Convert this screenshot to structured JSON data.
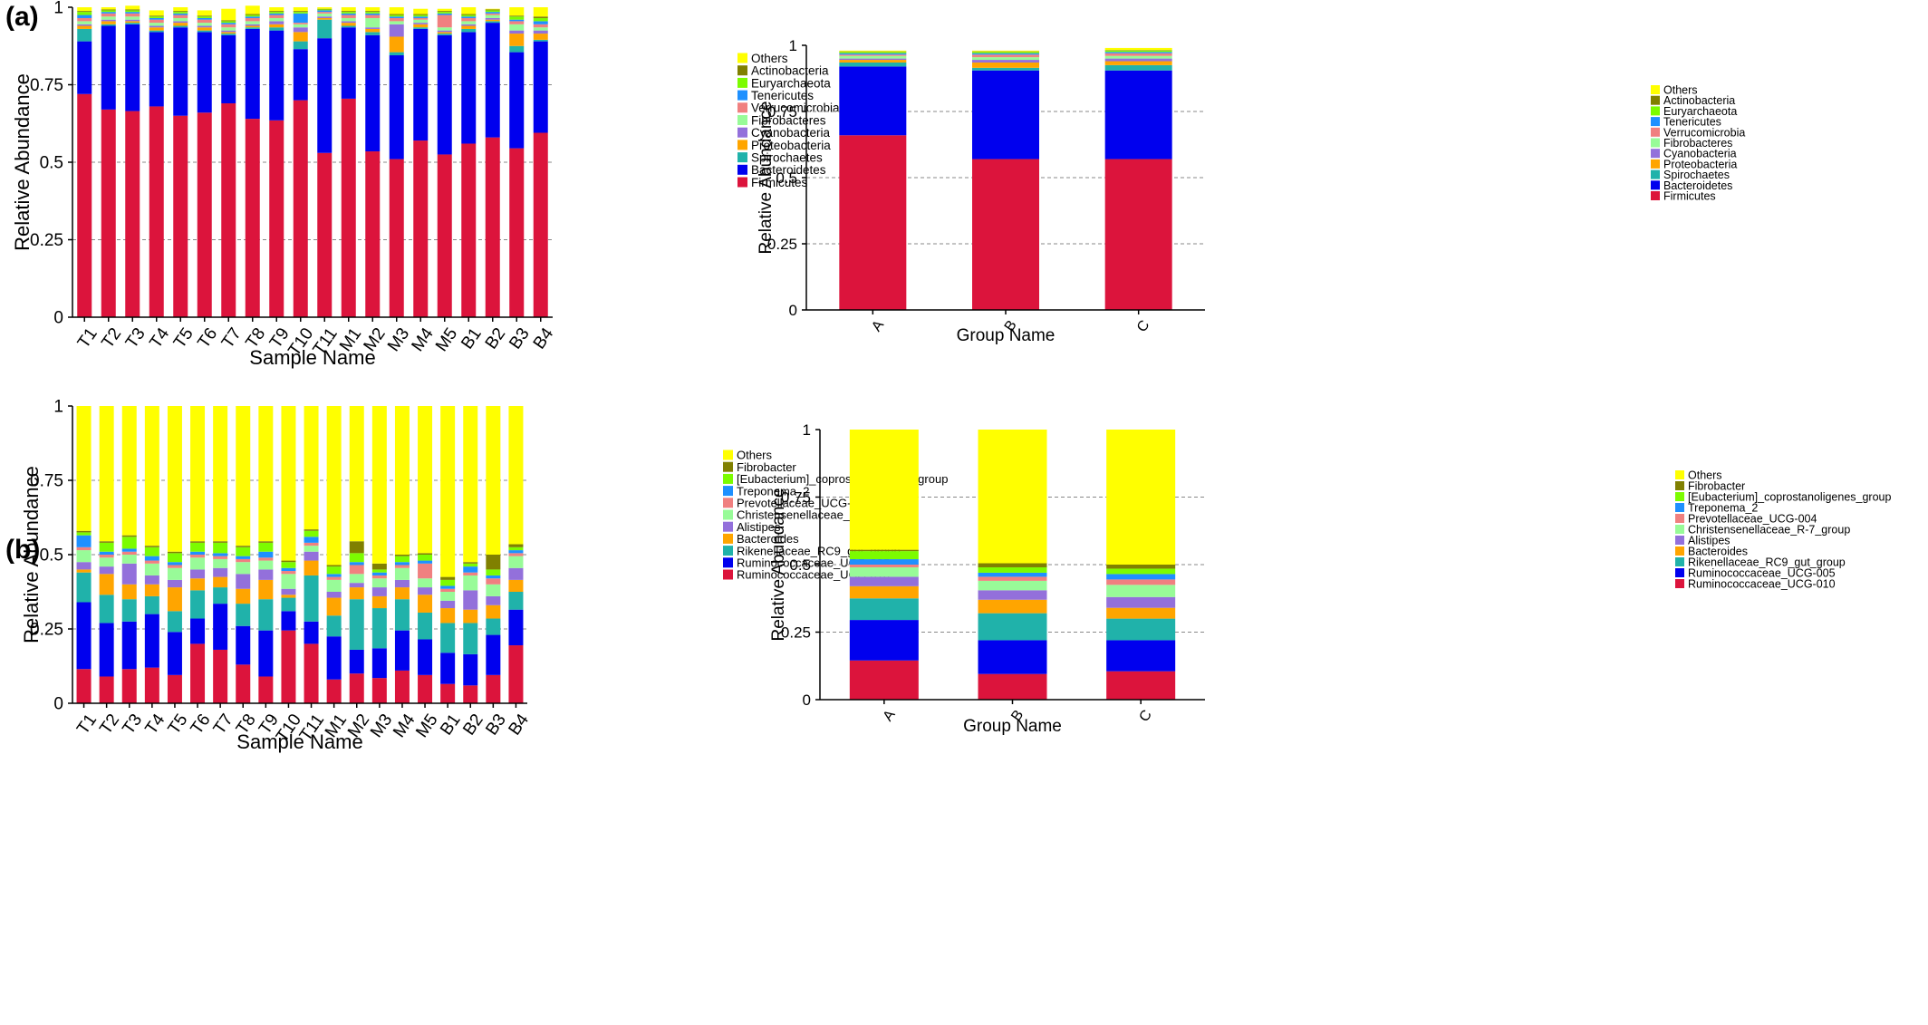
{
  "panels": [
    {
      "label": "(a)"
    },
    {
      "label": "(b)"
    }
  ],
  "chart_data": [
    {
      "type": "bar",
      "stacked": true,
      "panel": "(a)",
      "xlabel": "Sample Name",
      "ylabel": "Relative Abundance",
      "ylim": [
        0,
        1
      ],
      "yticks": [
        "0",
        "0.25",
        "0.5",
        "0.75",
        "1"
      ],
      "grid": "dashed horizontal",
      "legend_position": "right",
      "categories": [
        "T1",
        "T2",
        "T3",
        "T4",
        "T5",
        "T6",
        "T7",
        "T8",
        "T9",
        "T10",
        "T11",
        "M1",
        "M2",
        "M3",
        "M4",
        "M5",
        "B1",
        "B2",
        "B3",
        "B4"
      ],
      "series": [
        {
          "name": "Firmicutes",
          "color": "#dc143c",
          "values": [
            0.72,
            0.67,
            0.665,
            0.68,
            0.65,
            0.66,
            0.69,
            0.64,
            0.635,
            0.7,
            0.53,
            0.705,
            0.535,
            0.51,
            0.57,
            0.525,
            0.56,
            0.58,
            0.545,
            0.595
          ]
        },
        {
          "name": "Bacteroidetes",
          "color": "#0000ee",
          "values": [
            0.17,
            0.27,
            0.28,
            0.24,
            0.285,
            0.26,
            0.22,
            0.29,
            0.29,
            0.165,
            0.37,
            0.23,
            0.375,
            0.335,
            0.36,
            0.385,
            0.36,
            0.37,
            0.31,
            0.295
          ]
        },
        {
          "name": "Spirochaetes",
          "color": "#20b2aa",
          "values": [
            0.04,
            0.005,
            0.005,
            0.005,
            0.005,
            0.005,
            0.005,
            0.005,
            0.01,
            0.025,
            0.06,
            0.005,
            0.01,
            0.01,
            0.005,
            0.005,
            0.01,
            0.005,
            0.02,
            0.005
          ]
        },
        {
          "name": "Proteobacteria",
          "color": "#ffa500",
          "values": [
            0.01,
            0.01,
            0.005,
            0.01,
            0.01,
            0.01,
            0.005,
            0.005,
            0.01,
            0.03,
            0.005,
            0.01,
            0.01,
            0.05,
            0.01,
            0.005,
            0.01,
            0.005,
            0.04,
            0.02
          ]
        },
        {
          "name": "Cyanobacteria",
          "color": "#9370db",
          "values": [
            0.005,
            0.005,
            0.005,
            0.005,
            0.005,
            0.005,
            0.005,
            0.005,
            0.01,
            0.015,
            0.005,
            0.005,
            0.005,
            0.04,
            0.005,
            0.005,
            0.005,
            0.005,
            0.01,
            0.01
          ]
        },
        {
          "name": "Fibrobacteres",
          "color": "#98fb98",
          "values": [
            0.01,
            0.01,
            0.01,
            0.01,
            0.01,
            0.01,
            0.01,
            0.01,
            0.01,
            0.01,
            0.01,
            0.01,
            0.03,
            0.01,
            0.01,
            0.01,
            0.01,
            0.01,
            0.02,
            0.01
          ]
        },
        {
          "name": "Verrucomicrobia",
          "color": "#f08080",
          "values": [
            0.01,
            0.01,
            0.01,
            0.01,
            0.01,
            0.01,
            0.01,
            0.01,
            0.01,
            0.005,
            0.005,
            0.01,
            0.01,
            0.01,
            0.005,
            0.04,
            0.01,
            0.005,
            0.01,
            0.01
          ]
        },
        {
          "name": "Tenericutes",
          "color": "#1e90ff",
          "values": [
            0.01,
            0.005,
            0.005,
            0.005,
            0.005,
            0.005,
            0.005,
            0.005,
            0.005,
            0.03,
            0.005,
            0.005,
            0.005,
            0.005,
            0.005,
            0.005,
            0.005,
            0.005,
            0.005,
            0.01
          ]
        },
        {
          "name": "Euryarchaeota",
          "color": "#7cfc00",
          "values": [
            0.01,
            0.005,
            0.005,
            0.005,
            0.005,
            0.005,
            0.005,
            0.005,
            0.005,
            0.005,
            0.003,
            0.005,
            0.005,
            0.005,
            0.005,
            0.005,
            0.005,
            0.005,
            0.01,
            0.01
          ]
        },
        {
          "name": "Actinobacteria",
          "color": "#808000",
          "values": [
            0.003,
            0.003,
            0.003,
            0.003,
            0.003,
            0.003,
            0.003,
            0.003,
            0.003,
            0.003,
            0.002,
            0.003,
            0.003,
            0.003,
            0.003,
            0.003,
            0.003,
            0.003,
            0.003,
            0.005
          ]
        },
        {
          "name": "Others",
          "color": "#ffff00",
          "values": [
            0.012,
            0.007,
            0.012,
            0.017,
            0.012,
            0.017,
            0.037,
            0.027,
            0.012,
            0.012,
            0.005,
            0.012,
            0.012,
            0.022,
            0.017,
            0.007,
            0.022,
            0.002,
            0.027,
            0.03
          ]
        }
      ]
    },
    {
      "type": "bar",
      "stacked": true,
      "panel": "(a)",
      "xlabel": "Group Name",
      "ylabel": "Relative Abundance",
      "ylim": [
        0,
        1
      ],
      "yticks": [
        "0",
        "0.25",
        "0.5",
        "0.75",
        "1"
      ],
      "grid": "dashed horizontal",
      "legend_position": "right",
      "categories": [
        "A",
        "B",
        "C"
      ],
      "series": [
        {
          "name": "Firmicutes",
          "color": "#dc143c",
          "values": [
            0.66,
            0.57,
            0.57
          ]
        },
        {
          "name": "Bacteroidetes",
          "color": "#0000ee",
          "values": [
            0.26,
            0.335,
            0.335
          ]
        },
        {
          "name": "Spirochaetes",
          "color": "#20b2aa",
          "values": [
            0.015,
            0.01,
            0.02
          ]
        },
        {
          "name": "Proteobacteria",
          "color": "#ffa500",
          "values": [
            0.01,
            0.02,
            0.015
          ]
        },
        {
          "name": "Cyanobacteria",
          "color": "#9370db",
          "values": [
            0.005,
            0.01,
            0.01
          ]
        },
        {
          "name": "Fibrobacteres",
          "color": "#98fb98",
          "values": [
            0.01,
            0.01,
            0.01
          ]
        },
        {
          "name": "Verrucomicrobia",
          "color": "#f08080",
          "values": [
            0.005,
            0.01,
            0.01
          ]
        },
        {
          "name": "Tenericutes",
          "color": "#1e90ff",
          "values": [
            0.005,
            0.005,
            0.005
          ]
        },
        {
          "name": "Euryarchaeota",
          "color": "#7cfc00",
          "values": [
            0.005,
            0.005,
            0.005
          ]
        },
        {
          "name": "Actinobacteria",
          "color": "#808000",
          "values": [
            0.002,
            0.002,
            0.002
          ]
        },
        {
          "name": "Others",
          "color": "#ffff00",
          "values": [
            0.003,
            0.003,
            0.008
          ]
        }
      ]
    },
    {
      "type": "bar",
      "stacked": true,
      "panel": "(b)",
      "xlabel": "Sample Name",
      "ylabel": "Relative Abundance",
      "ylim": [
        0,
        1
      ],
      "yticks": [
        "0",
        "0.25",
        "0.5",
        "0.75",
        "1"
      ],
      "grid": "dashed horizontal",
      "legend_position": "right",
      "categories": [
        "T1",
        "T2",
        "T3",
        "T4",
        "T5",
        "T6",
        "T7",
        "T8",
        "T9",
        "T10",
        "T11",
        "M1",
        "M2",
        "M3",
        "M4",
        "M5",
        "B1",
        "B2",
        "B3",
        "B4"
      ],
      "series": [
        {
          "name": "Ruminococcaceae_UCG-010",
          "color": "#dc143c",
          "values": [
            0.115,
            0.09,
            0.115,
            0.12,
            0.095,
            0.2,
            0.18,
            0.13,
            0.09,
            0.245,
            0.2,
            0.08,
            0.1,
            0.085,
            0.11,
            0.095,
            0.065,
            0.06,
            0.095,
            0.195
          ]
        },
        {
          "name": "Ruminococcaceae_UCG-005",
          "color": "#0000ee",
          "values": [
            0.225,
            0.18,
            0.16,
            0.18,
            0.145,
            0.085,
            0.155,
            0.13,
            0.155,
            0.065,
            0.075,
            0.145,
            0.08,
            0.1,
            0.135,
            0.12,
            0.105,
            0.105,
            0.135,
            0.12
          ]
        },
        {
          "name": "Rikenellaceae_RC9_gut_group",
          "color": "#20b2aa",
          "values": [
            0.1,
            0.095,
            0.075,
            0.06,
            0.07,
            0.095,
            0.055,
            0.075,
            0.105,
            0.045,
            0.155,
            0.07,
            0.17,
            0.135,
            0.105,
            0.09,
            0.1,
            0.105,
            0.055,
            0.06
          ]
        },
        {
          "name": "Bacteroides",
          "color": "#ffa500",
          "values": [
            0.01,
            0.07,
            0.05,
            0.04,
            0.08,
            0.04,
            0.035,
            0.05,
            0.065,
            0.01,
            0.05,
            0.06,
            0.04,
            0.04,
            0.04,
            0.06,
            0.05,
            0.045,
            0.045,
            0.04
          ]
        },
        {
          "name": "Alistipes",
          "color": "#9370db",
          "values": [
            0.025,
            0.025,
            0.07,
            0.03,
            0.025,
            0.03,
            0.03,
            0.05,
            0.035,
            0.02,
            0.03,
            0.02,
            0.015,
            0.03,
            0.025,
            0.025,
            0.025,
            0.065,
            0.03,
            0.04
          ]
        },
        {
          "name": "Christensenellaceae_R-7_group",
          "color": "#98fb98",
          "values": [
            0.04,
            0.03,
            0.03,
            0.04,
            0.04,
            0.04,
            0.03,
            0.04,
            0.03,
            0.05,
            0.02,
            0.04,
            0.03,
            0.03,
            0.04,
            0.03,
            0.03,
            0.05,
            0.04,
            0.04
          ]
        },
        {
          "name": "Prevotellaceae_UCG-004",
          "color": "#f08080",
          "values": [
            0.01,
            0.01,
            0.01,
            0.01,
            0.01,
            0.01,
            0.01,
            0.01,
            0.01,
            0.01,
            0.01,
            0.01,
            0.03,
            0.01,
            0.01,
            0.05,
            0.01,
            0.01,
            0.02,
            0.01
          ]
        },
        {
          "name": "Treponema_2",
          "color": "#1e90ff",
          "values": [
            0.04,
            0.01,
            0.01,
            0.015,
            0.01,
            0.01,
            0.01,
            0.01,
            0.02,
            0.01,
            0.02,
            0.01,
            0.01,
            0.01,
            0.01,
            0.01,
            0.01,
            0.02,
            0.01,
            0.01
          ]
        },
        {
          "name": "[Eubacterium]_coprostanoligenes_group",
          "color": "#7cfc00",
          "values": [
            0.01,
            0.03,
            0.04,
            0.03,
            0.03,
            0.03,
            0.035,
            0.03,
            0.03,
            0.02,
            0.02,
            0.025,
            0.03,
            0.01,
            0.02,
            0.02,
            0.02,
            0.01,
            0.02,
            0.01
          ]
        },
        {
          "name": "Fibrobacter",
          "color": "#808000",
          "values": [
            0.005,
            0.005,
            0.005,
            0.005,
            0.005,
            0.005,
            0.005,
            0.005,
            0.005,
            0.005,
            0.005,
            0.005,
            0.04,
            0.02,
            0.005,
            0.005,
            0.01,
            0.005,
            0.05,
            0.01
          ]
        },
        {
          "name": "Others",
          "color": "#ffff00",
          "values": [
            0.42,
            0.455,
            0.435,
            0.47,
            0.49,
            0.455,
            0.455,
            0.47,
            0.455,
            0.52,
            0.415,
            0.535,
            0.455,
            0.53,
            0.5,
            0.495,
            0.575,
            0.525,
            0.5,
            0.465
          ]
        }
      ]
    },
    {
      "type": "bar",
      "stacked": true,
      "panel": "(b)",
      "xlabel": "Group Name",
      "ylabel": "Relative Abundance",
      "ylim": [
        0,
        1
      ],
      "yticks": [
        "0",
        "0.25",
        "0.5",
        "0.75",
        "1"
      ],
      "grid": "dashed horizontal",
      "legend_position": "right",
      "categories": [
        "A",
        "B",
        "C"
      ],
      "series": [
        {
          "name": "Ruminococcaceae_UCG-010",
          "color": "#dc143c",
          "values": [
            0.145,
            0.095,
            0.105
          ]
        },
        {
          "name": "Ruminococcaceae_UCG-005",
          "color": "#0000ee",
          "values": [
            0.15,
            0.125,
            0.115
          ]
        },
        {
          "name": "Rikenellaceae_RC9_gut_group",
          "color": "#20b2aa",
          "values": [
            0.08,
            0.1,
            0.08
          ]
        },
        {
          "name": "Bacteroides",
          "color": "#ffa500",
          "values": [
            0.045,
            0.05,
            0.04
          ]
        },
        {
          "name": "Alistipes",
          "color": "#9370db",
          "values": [
            0.035,
            0.035,
            0.04
          ]
        },
        {
          "name": "Christensenellaceae_R-7_group",
          "color": "#98fb98",
          "values": [
            0.035,
            0.035,
            0.045
          ]
        },
        {
          "name": "Prevotellaceae_UCG-004",
          "color": "#f08080",
          "values": [
            0.01,
            0.015,
            0.02
          ]
        },
        {
          "name": "Treponema_2",
          "color": "#1e90ff",
          "values": [
            0.02,
            0.015,
            0.02
          ]
        },
        {
          "name": "[Eubacterium]_coprostanoligenes_group",
          "color": "#7cfc00",
          "values": [
            0.03,
            0.02,
            0.02
          ]
        },
        {
          "name": "Fibrobacter",
          "color": "#808000",
          "values": [
            0.005,
            0.015,
            0.015
          ]
        },
        {
          "name": "Others",
          "color": "#ffff00",
          "values": [
            0.445,
            0.495,
            0.5
          ]
        }
      ]
    }
  ]
}
